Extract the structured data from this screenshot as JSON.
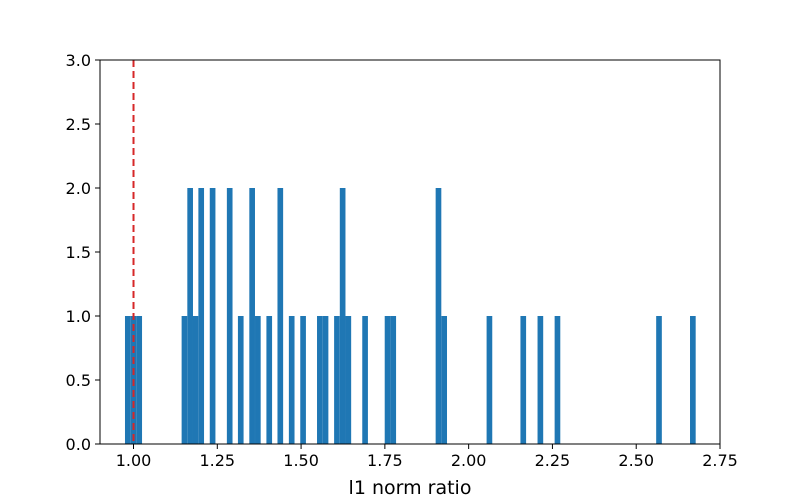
{
  "chart_data": {
    "type": "bar",
    "title": "",
    "xlabel": "l1 norm ratio",
    "ylabel": "",
    "xlim": [
      0.9,
      2.75
    ],
    "ylim": [
      0,
      3
    ],
    "xticks": [
      1.0,
      1.25,
      1.5,
      1.75,
      2.0,
      2.25,
      2.5,
      2.75
    ],
    "xtick_labels": [
      "1.00",
      "1.25",
      "1.50",
      "1.75",
      "2.00",
      "2.25",
      "2.50",
      "2.75"
    ],
    "yticks": [
      0,
      0.5,
      1,
      1.5,
      2,
      2.5,
      3
    ],
    "ytick_labels": [
      "0.0",
      "0.5",
      "1.0",
      "1.5",
      "2.0",
      "2.5",
      "3.0"
    ],
    "bin_width": 0.0169,
    "bar_color": "#1f77b4",
    "reference_line": {
      "x": 1.0,
      "style": "dashed",
      "color": "#d62728"
    },
    "grid": false,
    "bins": [
      {
        "x": 0.983,
        "count": 1
      },
      {
        "x": 1.0,
        "count": 1
      },
      {
        "x": 1.017,
        "count": 1
      },
      {
        "x": 1.152,
        "count": 1
      },
      {
        "x": 1.169,
        "count": 2
      },
      {
        "x": 1.185,
        "count": 1
      },
      {
        "x": 1.202,
        "count": 2
      },
      {
        "x": 1.236,
        "count": 2
      },
      {
        "x": 1.287,
        "count": 2
      },
      {
        "x": 1.32,
        "count": 1
      },
      {
        "x": 1.354,
        "count": 2
      },
      {
        "x": 1.371,
        "count": 1
      },
      {
        "x": 1.405,
        "count": 1
      },
      {
        "x": 1.438,
        "count": 2
      },
      {
        "x": 1.472,
        "count": 1
      },
      {
        "x": 1.506,
        "count": 1
      },
      {
        "x": 1.556,
        "count": 1
      },
      {
        "x": 1.573,
        "count": 1
      },
      {
        "x": 1.607,
        "count": 1
      },
      {
        "x": 1.624,
        "count": 2
      },
      {
        "x": 1.641,
        "count": 1
      },
      {
        "x": 1.691,
        "count": 1
      },
      {
        "x": 1.758,
        "count": 1
      },
      {
        "x": 1.775,
        "count": 1
      },
      {
        "x": 1.91,
        "count": 2
      },
      {
        "x": 1.927,
        "count": 1
      },
      {
        "x": 2.062,
        "count": 1
      },
      {
        "x": 2.163,
        "count": 1
      },
      {
        "x": 2.214,
        "count": 1
      },
      {
        "x": 2.265,
        "count": 1
      },
      {
        "x": 2.568,
        "count": 1
      },
      {
        "x": 2.669,
        "count": 1
      }
    ]
  }
}
